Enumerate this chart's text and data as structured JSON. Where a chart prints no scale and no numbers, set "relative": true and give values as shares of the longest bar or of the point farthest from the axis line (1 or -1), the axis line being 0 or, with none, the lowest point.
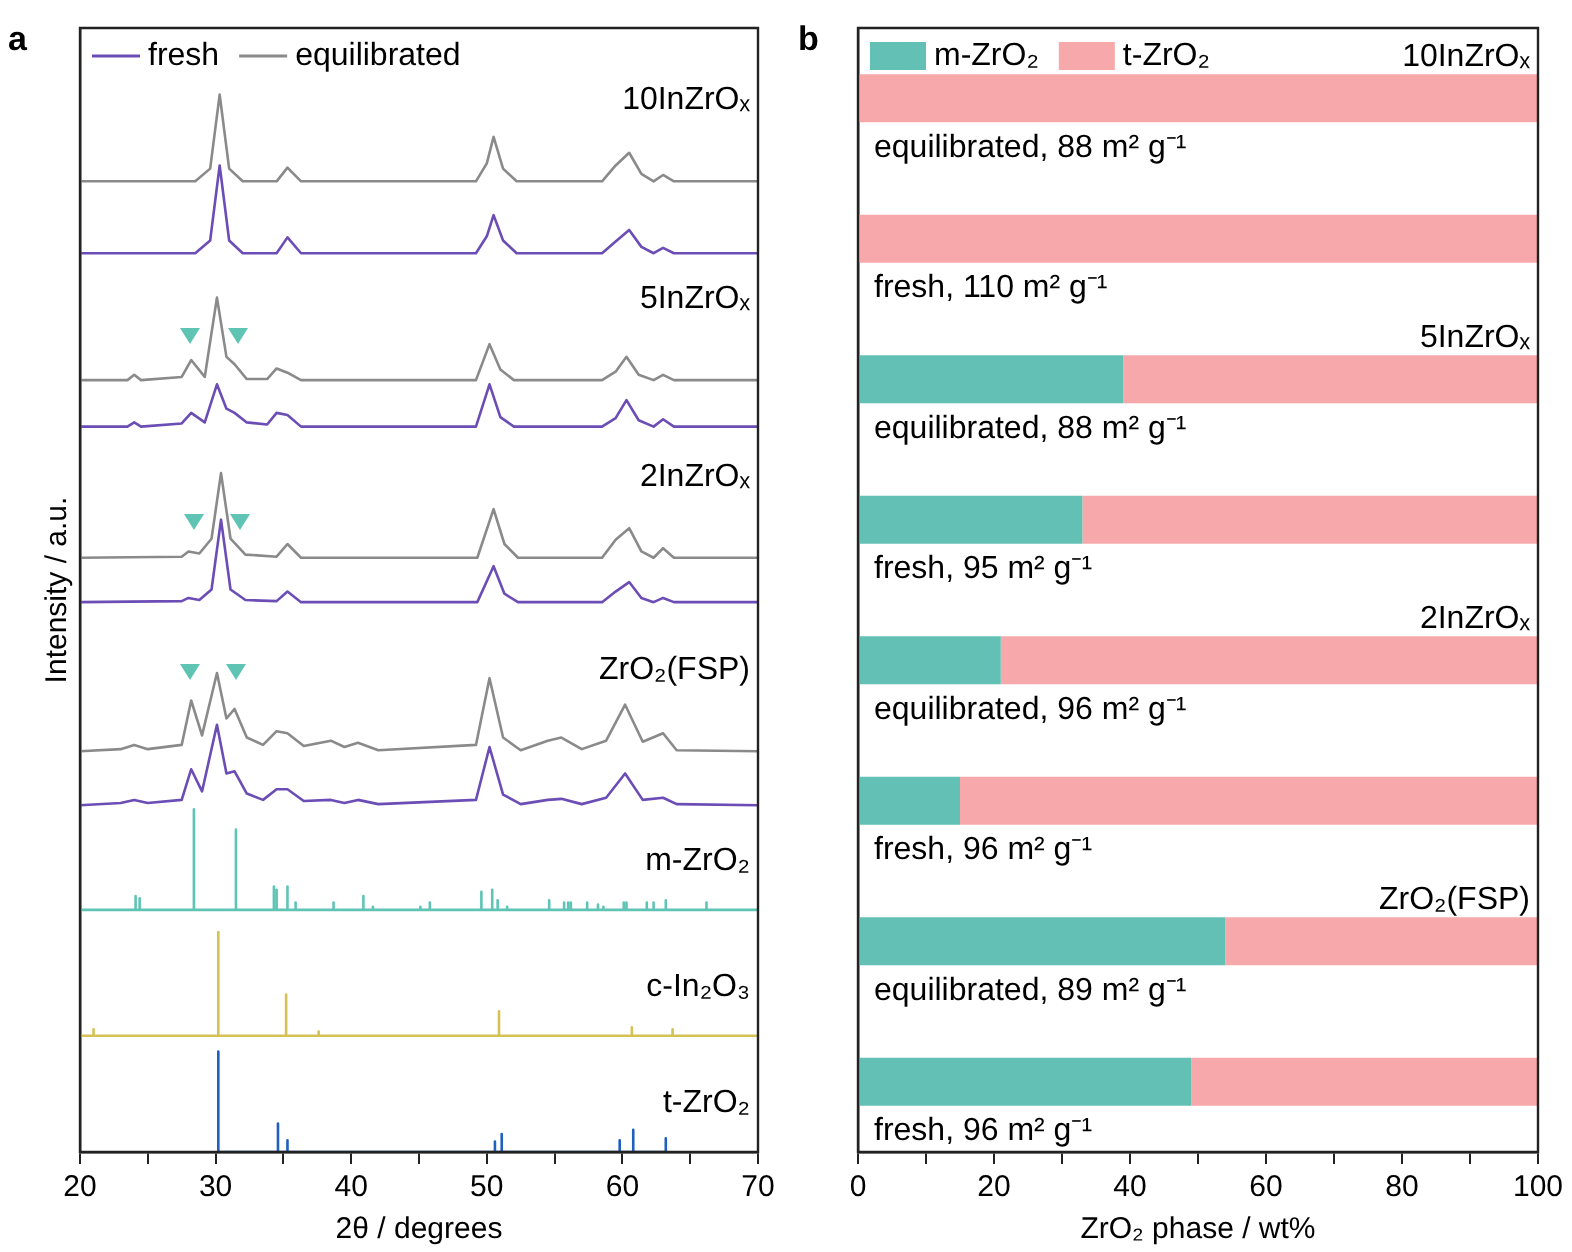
{
  "chart_data": [
    {
      "type": "line",
      "title": "a",
      "xlabel": "2θ / degrees",
      "ylabel": "Intensity / a.u.",
      "relative": true,
      "tick_labels": "x",
      "legend": "top left",
      "xlim": [
        20,
        70
      ],
      "xticks": [
        20,
        {
          "value": 25,
          "label": null
        },
        30,
        {
          "value": 35,
          "label": null
        },
        40,
        {
          "value": 45,
          "label": null
        },
        50,
        {
          "value": 55,
          "label": null
        },
        60,
        {
          "value": 65,
          "label": null
        },
        70
      ],
      "annotations": [
        "10InZrOₓ",
        "5InZrOₓ",
        "2InZrOₓ",
        "ZrO₂(FSP)",
        "m-ZrO₂",
        "c-In₂O₃",
        "t-ZrO₂"
      ],
      "series": [
        {
          "name": "fresh",
          "color": "#6b4db5",
          "x": [
            20,
            28.5,
            29.6,
            30.3,
            31.0,
            32,
            34.5,
            35.3,
            36.3,
            49.2,
            50.0,
            50.5,
            51.2,
            52.2,
            58.5,
            59.5,
            60.5,
            61.4,
            62.3,
            63.0,
            63.8,
            70
          ],
          "values": [
            0.85,
            0.85,
            0.862,
            0.933,
            0.862,
            0.85,
            0.85,
            0.865,
            0.85,
            0.85,
            0.866,
            0.886,
            0.862,
            0.85,
            0.85,
            0.861,
            0.872,
            0.856,
            0.85,
            0.855,
            0.85,
            0.85
          ]
        },
        {
          "name": "equilibrated",
          "color": "#8a8a8a",
          "x": [
            20,
            28.5,
            29.6,
            30.3,
            31.0,
            32,
            34.5,
            35.3,
            36.3,
            49.2,
            50.0,
            50.5,
            51.2,
            52.2,
            58.5,
            59.5,
            60.5,
            61.4,
            62.3,
            63.0,
            63.8,
            70
          ],
          "values": [
            0.918,
            0.918,
            0.93,
            1.0,
            0.93,
            0.918,
            0.918,
            0.931,
            0.918,
            0.918,
            0.935,
            0.96,
            0.93,
            0.918,
            0.918,
            0.933,
            0.945,
            0.925,
            0.918,
            0.924,
            0.918,
            0.918
          ]
        },
        {
          "color": "#6b4db5",
          "x": [
            20,
            23.5,
            24,
            24.5,
            27.5,
            28.2,
            29.2,
            30.1,
            30.8,
            31.4,
            32.3,
            33.8,
            34.5,
            35.3,
            36.3,
            49.2,
            50.2,
            51.0,
            52.0,
            58.5,
            59.5,
            60.3,
            61.2,
            62.3,
            63,
            63.8,
            70
          ],
          "values": [
            0.686,
            0.686,
            0.69,
            0.686,
            0.689,
            0.699,
            0.69,
            0.726,
            0.703,
            0.699,
            0.69,
            0.688,
            0.699,
            0.697,
            0.686,
            0.686,
            0.726,
            0.695,
            0.686,
            0.686,
            0.694,
            0.711,
            0.692,
            0.686,
            0.693,
            0.686,
            0.686
          ]
        },
        {
          "color": "#8a8a8a",
          "x": [
            20,
            23.5,
            24,
            24.5,
            27.5,
            28.2,
            29.2,
            30.1,
            30.8,
            31.4,
            32.3,
            33.8,
            34.5,
            35.3,
            36.3,
            49.2,
            50.2,
            51.0,
            52.0,
            58.5,
            59.5,
            60.3,
            61.2,
            62.3,
            63,
            63.8,
            70
          ],
          "values": [
            0.73,
            0.73,
            0.735,
            0.73,
            0.733,
            0.749,
            0.733,
            0.808,
            0.752,
            0.745,
            0.731,
            0.731,
            0.741,
            0.737,
            0.73,
            0.73,
            0.764,
            0.74,
            0.73,
            0.73,
            0.738,
            0.752,
            0.735,
            0.73,
            0.735,
            0.73,
            0.73
          ]
        },
        {
          "color": "#6b4db5",
          "x": [
            20,
            27.5,
            28.0,
            28.8,
            29.7,
            30.4,
            31.1,
            32.2,
            34.5,
            35.3,
            36.3,
            49.3,
            50.5,
            51.3,
            52.3,
            58.5,
            59.5,
            60.5,
            61.4,
            62.3,
            63,
            63.8,
            70
          ],
          "values": [
            0.52,
            0.521,
            0.524,
            0.522,
            0.532,
            0.598,
            0.532,
            0.522,
            0.521,
            0.53,
            0.52,
            0.52,
            0.554,
            0.528,
            0.52,
            0.52,
            0.53,
            0.539,
            0.524,
            0.52,
            0.524,
            0.52,
            0.52
          ]
        },
        {
          "color": "#8a8a8a",
          "x": [
            20,
            27.5,
            28.0,
            28.8,
            29.7,
            30.4,
            31.1,
            32.2,
            34.5,
            35.3,
            36.3,
            49.3,
            50.5,
            51.3,
            52.3,
            58.5,
            59.5,
            60.5,
            61.4,
            62.3,
            63,
            63.8,
            70
          ],
          "values": [
            0.562,
            0.563,
            0.568,
            0.566,
            0.58,
            0.642,
            0.58,
            0.565,
            0.563,
            0.575,
            0.562,
            0.562,
            0.608,
            0.575,
            0.562,
            0.562,
            0.579,
            0.59,
            0.568,
            0.562,
            0.571,
            0.562,
            0.562
          ]
        },
        {
          "color": "#6b4db5",
          "x": [
            20,
            23,
            24,
            25,
            27.5,
            28.2,
            29,
            30.1,
            30.8,
            31.4,
            32.3,
            33.5,
            34.5,
            35.3,
            36.5,
            38.5,
            39.5,
            40.5,
            42,
            49.2,
            50.2,
            51.2,
            52.5,
            54.5,
            55.5,
            57,
            58.8,
            60.2,
            61.5,
            63,
            64,
            70
          ],
          "values": [
            0.328,
            0.33,
            0.333,
            0.33,
            0.333,
            0.362,
            0.341,
            0.404,
            0.358,
            0.36,
            0.339,
            0.333,
            0.343,
            0.343,
            0.332,
            0.333,
            0.33,
            0.333,
            0.329,
            0.333,
            0.383,
            0.338,
            0.329,
            0.333,
            0.334,
            0.329,
            0.335,
            0.358,
            0.333,
            0.335,
            0.329,
            0.328
          ]
        },
        {
          "color": "#8a8a8a",
          "x": [
            20,
            23,
            24,
            25,
            27.5,
            28.2,
            29,
            30.1,
            30.8,
            31.4,
            32.3,
            33.5,
            34.5,
            35.3,
            36.5,
            38.5,
            39.5,
            40.5,
            42,
            49.2,
            50.2,
            51.2,
            52.5,
            54.5,
            55.5,
            57,
            58.8,
            60.2,
            61.5,
            63,
            64,
            70
          ],
          "values": [
            0.379,
            0.381,
            0.385,
            0.381,
            0.385,
            0.427,
            0.394,
            0.453,
            0.41,
            0.419,
            0.392,
            0.385,
            0.398,
            0.396,
            0.384,
            0.389,
            0.383,
            0.387,
            0.38,
            0.385,
            0.448,
            0.392,
            0.38,
            0.389,
            0.392,
            0.381,
            0.389,
            0.423,
            0.388,
            0.396,
            0.38,
            0.379
          ]
        },
        {
          "color": "#5fc4b4",
          "x": [
            20,
            24.1,
            24.1,
            24.1,
            24.4,
            24.4,
            24.4,
            28.4,
            28.4,
            28.4,
            31.5,
            31.5,
            31.5,
            34.3,
            34.3,
            34.3,
            34.5,
            34.5,
            34.5,
            35.3,
            35.3,
            35.3,
            35.9,
            35.9,
            35.9,
            38.7,
            38.7,
            38.7,
            40.9,
            40.9,
            40.9,
            41.6,
            41.6,
            41.6,
            45.1,
            45.1,
            45.1,
            45.8,
            45.8,
            45.8,
            49.6,
            49.6,
            49.6,
            50.4,
            50.4,
            50.4,
            50.8,
            50.8,
            50.8,
            51.5,
            51.5,
            51.5,
            54.6,
            54.6,
            54.6,
            55.7,
            55.7,
            55.7,
            56.0,
            56.0,
            56.0,
            56.2,
            56.2,
            56.2,
            57.4,
            57.4,
            57.4,
            58.2,
            58.2,
            58.2,
            58.6,
            58.6,
            58.6,
            60.1,
            60.1,
            60.1,
            60.3,
            60.3,
            60.3,
            61.8,
            61.8,
            61.8,
            62.3,
            62.3,
            62.3,
            63.2,
            63.2,
            63.2,
            66.2,
            66.2,
            66.2,
            70
          ],
          "values": [
            0.229,
            0.229,
            0.242,
            0.229,
            0.229,
            0.24,
            0.229,
            0.229,
            0.324,
            0.229,
            0.229,
            0.305,
            0.229,
            0.229,
            0.251,
            0.229,
            0.229,
            0.248,
            0.229,
            0.229,
            0.251,
            0.229,
            0.229,
            0.236,
            0.229,
            0.229,
            0.236,
            0.229,
            0.229,
            0.242,
            0.229,
            0.229,
            0.232,
            0.229,
            0.229,
            0.232,
            0.229,
            0.229,
            0.236,
            0.229,
            0.229,
            0.246,
            0.229,
            0.229,
            0.248,
            0.229,
            0.229,
            0.238,
            0.229,
            0.229,
            0.232,
            0.229,
            0.229,
            0.238,
            0.229,
            0.229,
            0.236,
            0.229,
            0.229,
            0.236,
            0.229,
            0.229,
            0.236,
            0.229,
            0.229,
            0.236,
            0.229,
            0.229,
            0.234,
            0.229,
            0.229,
            0.232,
            0.229,
            0.229,
            0.236,
            0.229,
            0.229,
            0.236,
            0.229,
            0.229,
            0.236,
            0.229,
            0.229,
            0.236,
            0.229,
            0.229,
            0.238,
            0.229,
            0.229,
            0.236,
            0.229,
            0.229
          ]
        },
        {
          "color": "#d4c254",
          "x": [
            20,
            21.0,
            21.0,
            21.0,
            30.2,
            30.2,
            30.2,
            35.2,
            35.2,
            35.2,
            37.6,
            37.6,
            37.6,
            50.9,
            50.9,
            50.9,
            60.7,
            60.7,
            60.7,
            63.7,
            63.7,
            63.7,
            70
          ],
          "values": [
            0.11,
            0.11,
            0.116,
            0.11,
            0.11,
            0.208,
            0.11,
            0.11,
            0.149,
            0.11,
            0.11,
            0.114,
            0.11,
            0.11,
            0.133,
            0.11,
            0.11,
            0.118,
            0.11,
            0.11,
            0.116,
            0.11,
            0.11
          ]
        },
        {
          "color": "#1f5fbf",
          "x": [
            30.2,
            30.2,
            30.2,
            34.6,
            34.6,
            34.6,
            35.3,
            35.3,
            35.3,
            50.6,
            50.6,
            50.6,
            51.1,
            51.1,
            51.1,
            59.8,
            59.8,
            59.8,
            60.8,
            60.8,
            60.8,
            63.2,
            63.2,
            63.2
          ],
          "values": [
            0,
            0.095,
            0,
            0,
            0.027,
            0,
            0,
            0.011,
            0,
            0,
            0.01,
            0,
            0,
            0.017,
            0,
            0,
            0.011,
            0,
            0,
            0.021,
            0,
            0,
            0.013,
            0
          ]
        }
      ]
    },
    {
      "type": "bar",
      "title": "b",
      "orientation": "horizontal",
      "stacked": true,
      "xlabel": "ZrO₂ phase / wt%",
      "legend": "top left",
      "xlim": [
        0,
        100
      ],
      "xticks": [
        0,
        {
          "value": 10,
          "label": null
        },
        20,
        {
          "value": 30,
          "label": null
        },
        40,
        {
          "value": 50,
          "label": null
        },
        60,
        {
          "value": 70,
          "label": null
        },
        80,
        {
          "value": 90,
          "label": null
        },
        100
      ],
      "categories": [
        "equilibrated, 88 m² g⁻¹",
        "fresh, 110 m² g⁻¹",
        "equilibrated, 88 m² g⁻¹",
        "fresh, 95 m² g⁻¹",
        "equilibrated, 96 m² g⁻¹",
        "fresh, 96 m² g⁻¹",
        "equilibrated, 89 m² g⁻¹",
        "fresh, 96 m² g⁻¹"
      ],
      "annotations": [
        "10InZrOₓ",
        "5InZrOₓ",
        "2InZrOₓ",
        "ZrO₂(FSP)"
      ],
      "series": [
        {
          "name": "m-ZrO₂",
          "color": "#62c0b4",
          "values": [
            0,
            0,
            39,
            33,
            21,
            15,
            54,
            49
          ]
        },
        {
          "name": "t-ZrO₂",
          "color": "#f7a8aa",
          "values": [
            100,
            100,
            61,
            67,
            79,
            85,
            46,
            51
          ]
        }
      ]
    }
  ]
}
